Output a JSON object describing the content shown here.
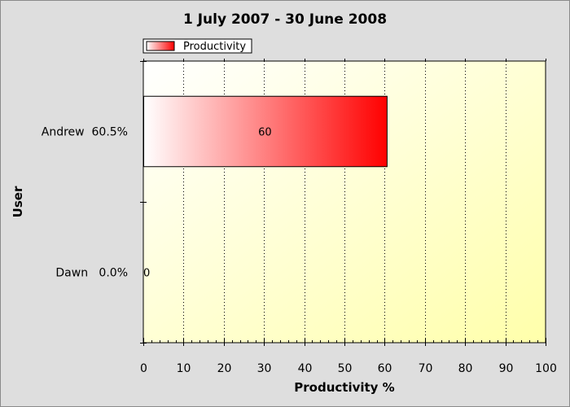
{
  "chart_data": {
    "type": "bar",
    "orientation": "horizontal",
    "title": "1 July 2007 - 30 June 2008",
    "xlabel": "Productivity %",
    "ylabel": "User",
    "categories": [
      "Andrew",
      "Dawn"
    ],
    "category_labels": [
      "Andrew  60.5%",
      "Dawn   0.0%"
    ],
    "series": [
      {
        "name": "Productivity",
        "values": [
          60.5,
          0
        ],
        "data_labels": [
          "60",
          "0"
        ]
      }
    ],
    "xlim": [
      0,
      100
    ],
    "x_ticks": [
      0,
      10,
      20,
      30,
      40,
      50,
      60,
      70,
      80,
      90,
      100
    ],
    "x_minor_step": 2,
    "grid": "vertical dotted",
    "legend_position": "top-left",
    "colors": {
      "bar_start": "#ffffff",
      "bar_end": "#ff0000",
      "plot_bg_start": "#ffffff",
      "plot_bg_end": "#ffffaa",
      "frame_bg": "#dedede"
    }
  }
}
